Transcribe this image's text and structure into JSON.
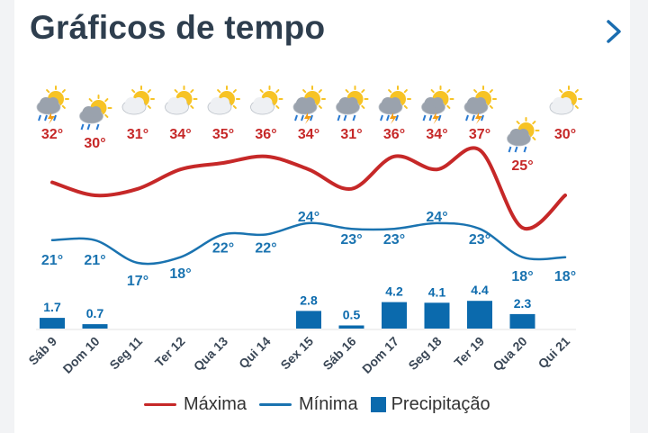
{
  "header": {
    "title": "Gráficos de tempo",
    "next_icon": "chevron-right-icon"
  },
  "colors": {
    "max": "#c62828",
    "min": "#1a73b0",
    "precip": "#0b6aad",
    "title": "#2e3e4e"
  },
  "legend": {
    "max_label": "Máxima",
    "min_label": "Mínima",
    "precip_label": "Precipitação"
  },
  "chart_data": {
    "type": "line",
    "categories": [
      "Sáb 9",
      "Dom 10",
      "Seg 11",
      "Ter 12",
      "Qua 13",
      "Qui 14",
      "Sex 15",
      "Sáb 16",
      "Dom 17",
      "Seg 18",
      "Ter 19",
      "Qua 20",
      "Qui 21"
    ],
    "icons": [
      "storm-icon",
      "rain-icon",
      "partly-cloudy-icon",
      "partly-cloudy-icon",
      "partly-cloudy-icon",
      "partly-cloudy-icon",
      "storm-icon",
      "rain-icon",
      "storm-icon",
      "storm-icon",
      "storm-icon",
      "rain-icon",
      "partly-cloudy-icon"
    ],
    "series": [
      {
        "name": "Máxima",
        "values": [
          32,
          30,
          31,
          34,
          35,
          36,
          34,
          31,
          36,
          34,
          37,
          25,
          30
        ],
        "labels": [
          "32°",
          "30°",
          "31°",
          "34°",
          "35°",
          "36°",
          "34°",
          "31°",
          "36°",
          "34°",
          "37°",
          "25°",
          "30°"
        ]
      },
      {
        "name": "Mínima",
        "values": [
          21,
          21,
          17,
          18,
          22,
          22,
          24,
          23,
          23,
          24,
          23,
          18,
          18
        ],
        "labels": [
          "21°",
          "21°",
          "17°",
          "18°",
          "22°",
          "22°",
          "24°",
          "23°",
          "23°",
          "24°",
          "23°",
          "18°",
          "18°"
        ]
      },
      {
        "name": "Precipitação",
        "type": "bar",
        "values": [
          1.7,
          0.7,
          null,
          null,
          null,
          null,
          2.8,
          0.5,
          4.2,
          4.1,
          4.4,
          2.3,
          null
        ],
        "labels": [
          "1.7",
          "0.7",
          "",
          "",
          "",
          "",
          "2.8",
          "0.5",
          "4.2",
          "4.1",
          "4.4",
          "2.3",
          ""
        ]
      }
    ],
    "grid": false,
    "legend_position": "bottom"
  }
}
